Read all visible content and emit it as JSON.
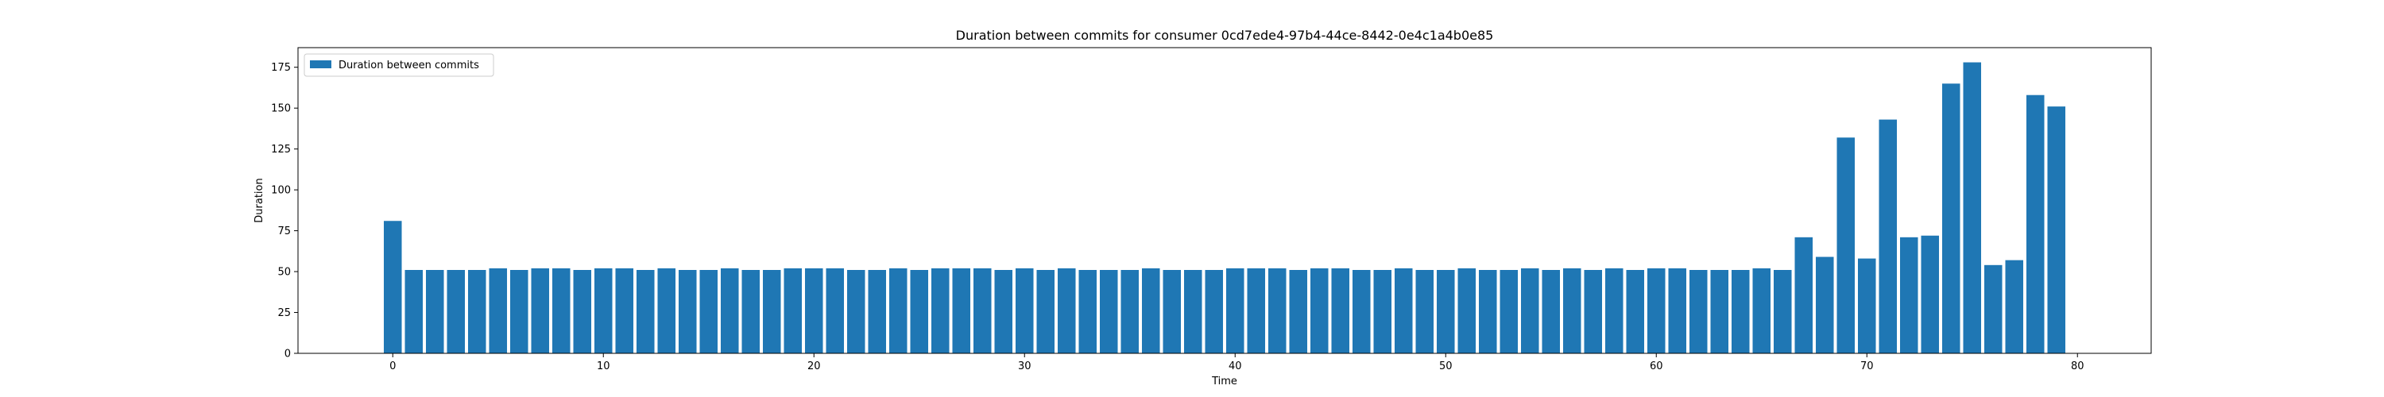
{
  "chart_data": {
    "type": "bar",
    "title": "Duration between commits for consumer 0cd7ede4-97b4-44ce-8442-0e4c1a4b0e85",
    "xlabel": "Time",
    "ylabel": "Duration",
    "legend": {
      "placement": "upper-left",
      "entries": [
        "Duration between commits"
      ]
    },
    "grid": false,
    "xlim": [
      -4.5,
      83.5
    ],
    "ylim": [
      0,
      187
    ],
    "xticks": [
      0,
      10,
      20,
      30,
      40,
      50,
      60,
      70,
      80
    ],
    "yticks": [
      0,
      25,
      50,
      75,
      100,
      125,
      150,
      175
    ],
    "bar_color": "#1f77b4",
    "series": [
      {
        "name": "Duration between commits",
        "x": [
          0,
          1,
          2,
          3,
          4,
          5,
          6,
          7,
          8,
          9,
          10,
          11,
          12,
          13,
          14,
          15,
          16,
          17,
          18,
          19,
          20,
          21,
          22,
          23,
          24,
          25,
          26,
          27,
          28,
          29,
          30,
          31,
          32,
          33,
          34,
          35,
          36,
          37,
          38,
          39,
          40,
          41,
          42,
          43,
          44,
          45,
          46,
          47,
          48,
          49,
          50,
          51,
          52,
          53,
          54,
          55,
          56,
          57,
          58,
          59,
          60,
          61,
          62,
          63,
          64,
          65,
          66,
          67,
          68,
          69,
          70,
          71,
          72,
          73,
          74,
          75,
          76,
          77,
          78,
          79
        ],
        "values": [
          81,
          51,
          51,
          51,
          51,
          52,
          51,
          52,
          52,
          51,
          52,
          52,
          51,
          52,
          51,
          51,
          52,
          51,
          51,
          52,
          52,
          52,
          51,
          51,
          52,
          51,
          52,
          52,
          52,
          51,
          52,
          51,
          52,
          51,
          51,
          51,
          52,
          51,
          51,
          51,
          52,
          52,
          52,
          51,
          52,
          52,
          51,
          51,
          52,
          51,
          51,
          52,
          51,
          51,
          52,
          51,
          52,
          51,
          52,
          51,
          52,
          52,
          51,
          51,
          51,
          52,
          51,
          71,
          59,
          132,
          58,
          143,
          71,
          72,
          165,
          178,
          54,
          57,
          158,
          151
        ]
      }
    ]
  }
}
